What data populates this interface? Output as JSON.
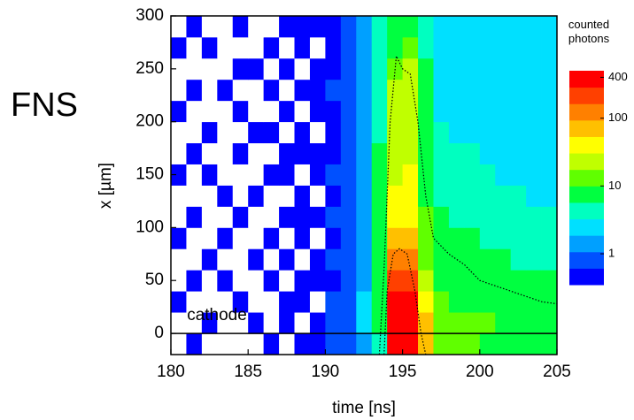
{
  "panel_label": "FNS",
  "chart_data": {
    "type": "heatmap",
    "xlabel": "time [ns]",
    "ylabel": "x [µm]",
    "annotation": "cathode",
    "reference_line": 0,
    "xlim": [
      180,
      205
    ],
    "ylim": [
      -20,
      300
    ],
    "xticks": [
      180,
      185,
      190,
      195,
      200,
      205
    ],
    "yticks": [
      0,
      50,
      100,
      150,
      200,
      250,
      300
    ],
    "xbins": [
      180,
      181,
      182,
      183,
      184,
      185,
      186,
      187,
      188,
      189,
      190,
      191,
      192,
      193,
      194,
      195,
      196,
      197,
      198,
      199,
      200,
      201,
      202,
      203,
      204,
      205
    ],
    "ybins": [
      -20,
      0,
      20,
      40,
      60,
      80,
      100,
      120,
      140,
      160,
      180,
      200,
      220,
      240,
      260,
      280,
      300
    ],
    "z": [
      [
        0,
        0.5,
        0,
        0,
        0,
        0,
        0.5,
        0,
        0.5,
        0.5,
        0.7,
        1,
        1.5,
        5,
        300,
        350,
        60,
        15,
        12,
        12,
        10,
        10,
        9,
        9,
        8
      ],
      [
        0,
        0,
        0.5,
        0,
        0,
        0.5,
        0,
        0.5,
        0,
        0.5,
        0.8,
        1,
        2,
        8,
        400,
        400,
        80,
        15,
        14,
        12,
        12,
        10,
        10,
        9,
        9
      ],
      [
        0.5,
        0,
        0,
        0,
        0.5,
        0,
        0,
        0.5,
        0.5,
        0,
        0.7,
        1,
        2,
        8,
        300,
        300,
        40,
        12,
        10,
        10,
        9,
        9,
        8,
        8,
        7
      ],
      [
        0,
        0.5,
        0,
        0.5,
        0,
        0,
        0.5,
        0,
        0.5,
        0.5,
        0.6,
        1,
        1.5,
        8,
        200,
        200,
        30,
        10,
        9,
        8,
        8,
        7,
        7,
        6,
        6
      ],
      [
        0,
        0,
        0.5,
        0,
        0,
        0.5,
        0,
        0.5,
        0,
        0.5,
        0.7,
        1,
        1.5,
        8,
        100,
        120,
        15,
        8,
        7,
        7,
        6,
        6,
        5,
        5,
        5
      ],
      [
        0.5,
        0,
        0,
        0.5,
        0,
        0,
        0.5,
        0,
        0.5,
        0,
        0.6,
        0.9,
        1.5,
        7,
        60,
        70,
        12,
        7,
        6,
        6,
        5,
        5,
        5,
        4,
        4
      ],
      [
        0,
        0.5,
        0,
        0,
        0.5,
        0,
        0,
        0.5,
        0.5,
        0.5,
        0.7,
        1,
        1.5,
        7,
        40,
        45,
        12,
        6,
        5,
        5,
        5,
        4,
        4,
        4,
        4
      ],
      [
        0,
        0,
        0,
        0.5,
        0,
        0.5,
        0,
        0,
        0.5,
        0,
        0.6,
        0.9,
        1.5,
        7,
        40,
        40,
        10,
        5,
        5,
        4,
        4,
        4,
        4,
        3,
        3
      ],
      [
        0.5,
        0,
        0.5,
        0,
        0,
        0,
        0.5,
        0.5,
        0,
        0.5,
        0.7,
        1,
        1.5,
        6,
        30,
        35,
        10,
        5,
        4,
        4,
        4,
        3,
        3,
        3,
        3
      ],
      [
        0,
        0.5,
        0,
        0,
        0.5,
        0,
        0,
        0.5,
        0.5,
        0.5,
        0.6,
        1,
        1.5,
        6,
        25,
        30,
        10,
        4,
        4,
        4,
        3,
        3,
        3,
        3,
        3
      ],
      [
        0,
        0,
        0.5,
        0,
        0,
        0.5,
        0.5,
        0,
        0.5,
        0,
        0.6,
        0.9,
        1.3,
        5,
        25,
        25,
        6,
        4,
        3,
        3,
        3,
        3,
        3,
        2,
        2
      ],
      [
        0.5,
        0,
        0,
        0,
        0.5,
        0,
        0,
        0.5,
        0,
        0.5,
        0.6,
        1,
        1.3,
        5,
        20,
        22,
        6,
        3,
        3,
        3,
        3,
        3,
        2,
        2,
        2
      ],
      [
        0,
        0.5,
        0,
        0.5,
        0,
        0,
        0.5,
        0,
        0.5,
        0.5,
        0.7,
        0.9,
        1.3,
        5,
        20,
        20,
        6,
        3,
        3,
        3,
        2,
        2,
        2,
        2,
        2
      ],
      [
        0,
        0,
        0,
        0,
        0.5,
        0.5,
        0,
        0.5,
        0,
        0.5,
        0.6,
        1,
        1.3,
        5,
        15,
        18,
        6,
        3,
        3,
        2,
        2,
        2,
        2,
        2,
        2
      ],
      [
        0.5,
        0,
        0.5,
        0,
        0,
        0,
        0.5,
        0,
        0.5,
        0,
        0.6,
        0.9,
        1.2,
        4,
        10,
        12,
        5,
        3,
        2,
        2,
        2,
        2,
        2,
        2,
        2
      ],
      [
        0,
        0.5,
        0,
        0,
        0.5,
        0,
        0,
        0.5,
        0.5,
        0.5,
        0.6,
        0.9,
        1.2,
        4,
        6,
        8,
        5,
        2,
        2,
        2,
        2,
        2,
        2,
        2,
        2
      ]
    ],
    "colorscale": [
      "#0000ff",
      "#0050ff",
      "#00a0ff",
      "#00e0ff",
      "#00ffc0",
      "#00ff40",
      "#60ff00",
      "#c0ff00",
      "#ffff00",
      "#ffc000",
      "#ff8000",
      "#ff4000",
      "#ff0000"
    ],
    "colorbar": {
      "title": "counted photons",
      "log": true,
      "clim": [
        0.35,
        500
      ],
      "ticks": [
        1,
        10,
        100,
        400
      ]
    },
    "series": [
      {
        "color": "#000000",
        "x": [
          193.5,
          193.8,
          194.2,
          194.6,
          195,
          195.5,
          196,
          196.5,
          197,
          198,
          199,
          200,
          201,
          202,
          203,
          204,
          205
        ],
        "values": [
          -20,
          60,
          200,
          262,
          250,
          245,
          200,
          130,
          90,
          75,
          65,
          50,
          45,
          40,
          35,
          30,
          28
        ]
      },
      {
        "color": "#000000",
        "x": [
          193.8,
          194,
          194.4,
          194.8,
          195.3,
          195.8,
          196.2,
          196.5
        ],
        "values": [
          -20,
          40,
          75,
          80,
          75,
          40,
          0,
          -20
        ]
      }
    ]
  }
}
